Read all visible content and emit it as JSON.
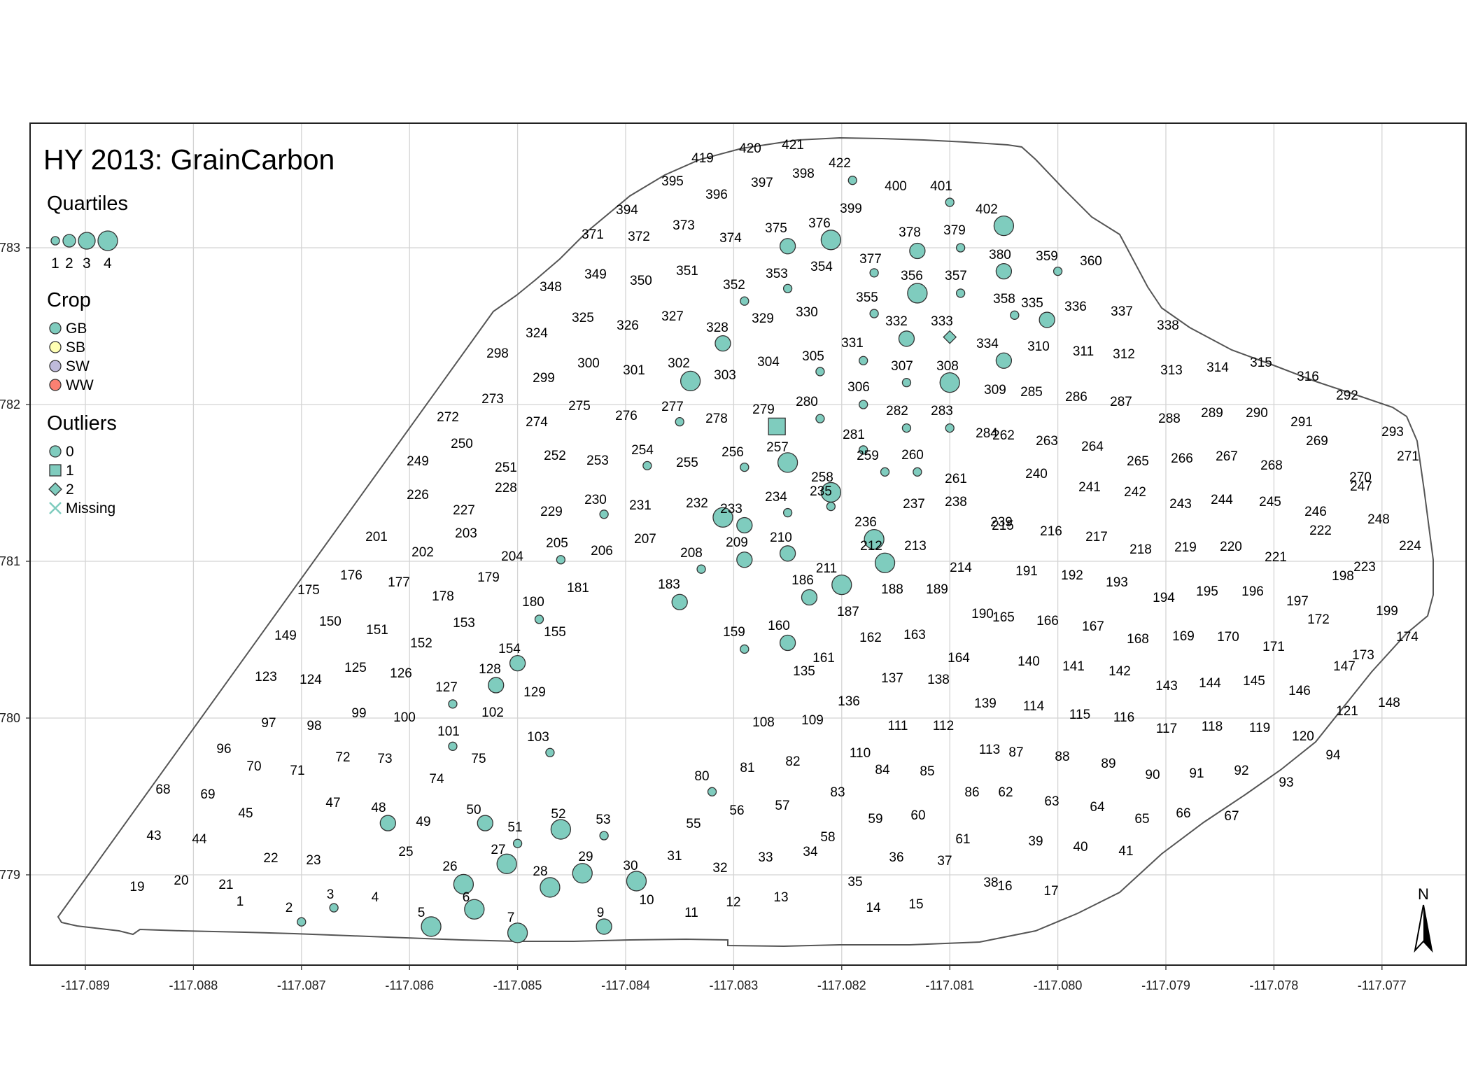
{
  "title": "HY 2013: GrainCarbon",
  "legend": {
    "quartiles_title": "Quartiles",
    "quartile_labels": [
      "1",
      "2",
      "3",
      "4"
    ],
    "crop_title": "Crop",
    "crops": [
      {
        "label": "GB",
        "color": "#7fccbe"
      },
      {
        "label": "SB",
        "color": "#ffffb3"
      },
      {
        "label": "SW",
        "color": "#bebada"
      },
      {
        "label": "WW",
        "color": "#fb8072"
      }
    ],
    "outliers_title": "Outliers",
    "outliers": [
      {
        "label": "0",
        "shape": "circle"
      },
      {
        "label": "1",
        "shape": "square"
      },
      {
        "label": "2",
        "shape": "diamond"
      },
      {
        "label": "Missing",
        "shape": "x"
      }
    ]
  },
  "axes": {
    "x_ticks": [
      "-117.089",
      "-117.088",
      "-117.087",
      "-117.086",
      "-117.085",
      "-117.084",
      "-117.083",
      "-117.082",
      "-117.081",
      "-117.080",
      "-117.079",
      "-117.078",
      "-117.077"
    ],
    "y_ticks": [
      "783",
      "782",
      "781",
      "780",
      "779"
    ]
  },
  "north_label": "N",
  "colors": {
    "point_fill": "#7fccbe",
    "point_stroke": "#333333",
    "boundary": "#555555",
    "grid": "#d4d4d4"
  },
  "chart_data": {
    "type": "scatter",
    "title": "HY 2013: GrainCarbon",
    "xlim": [
      -117.0893,
      -117.0763
    ],
    "x_ticks": [
      -117.089,
      -117.088,
      -117.087,
      -117.086,
      -117.085,
      -117.084,
      -117.083,
      -117.082,
      -117.081,
      -117.08,
      -117.079,
      -117.078,
      -117.077
    ],
    "y_ticks": [
      783,
      782,
      781,
      780,
      779
    ],
    "series": [
      {
        "name": "GB",
        "points": [
          {
            "id": "2",
            "x": -117.087,
            "y": 778.7,
            "q": 1,
            "o": 0
          },
          {
            "id": "3",
            "x": -117.0867,
            "y": 778.79,
            "q": 1,
            "o": 0
          },
          {
            "id": "5",
            "x": -117.0858,
            "y": 778.67,
            "q": 3,
            "o": 0
          },
          {
            "id": "6",
            "x": -117.0854,
            "y": 778.78,
            "q": 3,
            "o": 0
          },
          {
            "id": "7",
            "x": -117.085,
            "y": 778.63,
            "q": 3,
            "o": 0
          },
          {
            "id": "9",
            "x": -117.0842,
            "y": 778.67,
            "q": 2,
            "o": 0
          },
          {
            "id": "26",
            "x": -117.0855,
            "y": 778.94,
            "q": 3,
            "o": 0
          },
          {
            "id": "27",
            "x": -117.0851,
            "y": 779.07,
            "q": 3,
            "o": 0
          },
          {
            "id": "28",
            "x": -117.0847,
            "y": 778.92,
            "q": 3,
            "o": 0
          },
          {
            "id": "29",
            "x": -117.0844,
            "y": 779.01,
            "q": 3,
            "o": 0
          },
          {
            "id": "30",
            "x": -117.0839,
            "y": 778.96,
            "q": 3,
            "o": 0
          },
          {
            "id": "48",
            "x": -117.0862,
            "y": 779.33,
            "q": 2,
            "o": 0
          },
          {
            "id": "50",
            "x": -117.0853,
            "y": 779.33,
            "q": 2,
            "o": 0
          },
          {
            "id": "51",
            "x": -117.085,
            "y": 779.2,
            "q": 1,
            "o": 0
          },
          {
            "id": "52",
            "x": -117.0846,
            "y": 779.29,
            "q": 3,
            "o": 0
          },
          {
            "id": "53",
            "x": -117.0842,
            "y": 779.25,
            "q": 1,
            "o": 0
          },
          {
            "id": "80",
            "x": -117.0832,
            "y": 779.53,
            "q": 1,
            "o": 0
          },
          {
            "id": "101",
            "x": -117.0856,
            "y": 779.82,
            "q": 1,
            "o": 0
          },
          {
            "id": "103",
            "x": -117.0847,
            "y": 779.78,
            "q": 1,
            "o": 0
          },
          {
            "id": "127",
            "x": -117.0856,
            "y": 780.09,
            "q": 1,
            "o": 0
          },
          {
            "id": "128",
            "x": -117.0852,
            "y": 780.21,
            "q": 2,
            "o": 0
          },
          {
            "id": "154",
            "x": -117.085,
            "y": 780.35,
            "q": 2,
            "o": 0
          },
          {
            "id": "159",
            "x": -117.0829,
            "y": 780.44,
            "q": 1,
            "o": 0
          },
          {
            "id": "160",
            "x": -117.0825,
            "y": 780.48,
            "q": 2,
            "o": 0
          },
          {
            "id": "180",
            "x": -117.0848,
            "y": 780.63,
            "q": 1,
            "o": 0
          },
          {
            "id": "183",
            "x": -117.0835,
            "y": 780.74,
            "q": 2,
            "o": 0
          },
          {
            "id": "186",
            "x": -117.0823,
            "y": 780.77,
            "q": 2,
            "o": 0
          },
          {
            "id": "205",
            "x": -117.0846,
            "y": 781.01,
            "q": 1,
            "o": 0
          },
          {
            "id": "208",
            "x": -117.0833,
            "y": 780.95,
            "q": 1,
            "o": 0
          },
          {
            "id": "209",
            "x": -117.0829,
            "y": 781.01,
            "q": 2,
            "o": 0
          },
          {
            "id": "210",
            "x": -117.0825,
            "y": 781.05,
            "q": 2,
            "o": 0
          },
          {
            "id": "211",
            "x": -117.082,
            "y": 780.85,
            "q": 3,
            "o": 0
          },
          {
            "id": "212",
            "x": -117.0816,
            "y": 780.99,
            "q": 3,
            "o": 0
          },
          {
            "id": "230",
            "x": -117.0842,
            "y": 781.3,
            "q": 1,
            "o": 0
          },
          {
            "id": "232",
            "x": -117.0831,
            "y": 781.28,
            "q": 3,
            "o": 0
          },
          {
            "id": "233",
            "x": -117.0829,
            "y": 781.23,
            "q": 2,
            "o": 0
          },
          {
            "id": "234",
            "x": -117.0825,
            "y": 781.31,
            "q": 1,
            "o": 0
          },
          {
            "id": "235",
            "x": -117.0821,
            "y": 781.35,
            "q": 1,
            "o": 0
          },
          {
            "id": "236",
            "x": -117.0817,
            "y": 781.14,
            "q": 3,
            "o": 0
          },
          {
            "id": "254",
            "x": -117.0838,
            "y": 781.61,
            "q": 1,
            "o": 0
          },
          {
            "id": "256",
            "x": -117.0829,
            "y": 781.6,
            "q": 1,
            "o": 0
          },
          {
            "id": "257",
            "x": -117.0825,
            "y": 781.63,
            "q": 3,
            "o": 0
          },
          {
            "id": "258",
            "x": -117.0821,
            "y": 781.44,
            "q": 3,
            "o": 0
          },
          {
            "id": "259",
            "x": -117.0816,
            "y": 781.57,
            "q": 1,
            "o": 0
          },
          {
            "id": "260",
            "x": -117.0813,
            "y": 781.57,
            "q": 1,
            "o": 0
          },
          {
            "id": "277",
            "x": -117.0835,
            "y": 781.89,
            "q": 1,
            "o": 0
          },
          {
            "id": "279",
            "x": -117.0826,
            "y": 781.86,
            "q": 4,
            "o": 1
          },
          {
            "id": "280",
            "x": -117.0822,
            "y": 781.91,
            "q": 1,
            "o": 0
          },
          {
            "id": "281",
            "x": -117.0818,
            "y": 781.71,
            "q": 1,
            "o": 0
          },
          {
            "id": "282",
            "x": -117.0814,
            "y": 781.85,
            "q": 1,
            "o": 0
          },
          {
            "id": "283",
            "x": -117.081,
            "y": 781.85,
            "q": 1,
            "o": 0
          },
          {
            "id": "302",
            "x": -117.0834,
            "y": 782.15,
            "q": 3,
            "o": 0
          },
          {
            "id": "305",
            "x": -117.0822,
            "y": 782.21,
            "q": 1,
            "o": 0
          },
          {
            "id": "306",
            "x": -117.0818,
            "y": 782.0,
            "q": 1,
            "o": 0
          },
          {
            "id": "307",
            "x": -117.0814,
            "y": 782.14,
            "q": 1,
            "o": 0
          },
          {
            "id": "308",
            "x": -117.081,
            "y": 782.14,
            "q": 3,
            "o": 0
          },
          {
            "id": "328",
            "x": -117.0831,
            "y": 782.39,
            "q": 2,
            "o": 0
          },
          {
            "id": "331",
            "x": -117.0818,
            "y": 782.28,
            "q": 1,
            "o": 0
          },
          {
            "id": "332",
            "x": -117.0814,
            "y": 782.42,
            "q": 2,
            "o": 0
          },
          {
            "id": "333",
            "x": -117.081,
            "y": 782.43,
            "q": 2,
            "o": 2
          },
          {
            "id": "334",
            "x": -117.0805,
            "y": 782.28,
            "q": 2,
            "o": 0
          },
          {
            "id": "335",
            "x": -117.0801,
            "y": 782.54,
            "q": 2,
            "o": 0
          },
          {
            "id": "352",
            "x": -117.0829,
            "y": 782.66,
            "q": 1,
            "o": 0
          },
          {
            "id": "353",
            "x": -117.0825,
            "y": 782.74,
            "q": 1,
            "o": 0
          },
          {
            "id": "355",
            "x": -117.0817,
            "y": 782.58,
            "q": 1,
            "o": 0
          },
          {
            "id": "356",
            "x": -117.0813,
            "y": 782.71,
            "q": 3,
            "o": 0
          },
          {
            "id": "357",
            "x": -117.0809,
            "y": 782.71,
            "q": 1,
            "o": 0
          },
          {
            "id": "358",
            "x": -117.0804,
            "y": 782.57,
            "q": 1,
            "o": 0
          },
          {
            "id": "359",
            "x": -117.08,
            "y": 782.85,
            "q": 1,
            "o": 0
          },
          {
            "id": "375",
            "x": -117.0825,
            "y": 783.01,
            "q": 2,
            "o": 0
          },
          {
            "id": "376",
            "x": -117.0821,
            "y": 783.05,
            "q": 3,
            "o": 0
          },
          {
            "id": "377",
            "x": -117.0817,
            "y": 782.84,
            "q": 1,
            "o": 0
          },
          {
            "id": "378",
            "x": -117.0813,
            "y": 782.98,
            "q": 2,
            "o": 0
          },
          {
            "id": "379",
            "x": -117.0809,
            "y": 783.0,
            "q": 1,
            "o": 0
          },
          {
            "id": "380",
            "x": -117.0805,
            "y": 782.85,
            "q": 2,
            "o": 0
          },
          {
            "id": "401",
            "x": -117.081,
            "y": 783.29,
            "q": 1,
            "o": 0
          },
          {
            "id": "402",
            "x": -117.0805,
            "y": 783.14,
            "q": 3,
            "o": 0
          },
          {
            "id": "422",
            "x": -117.0819,
            "y": 783.43,
            "q": 1,
            "o": 0
          }
        ]
      }
    ]
  },
  "label_list": [
    "1",
    "2",
    "3",
    "4",
    "5",
    "6",
    "7",
    "9",
    "10",
    "11",
    "12",
    "13",
    "14",
    "15",
    "16",
    "17",
    "19",
    "20",
    "21",
    "22",
    "23",
    "25",
    "26",
    "27",
    "28",
    "29",
    "30",
    "31",
    "32",
    "33",
    "34",
    "35",
    "36",
    "37",
    "38",
    "39",
    "40",
    "41",
    "43",
    "44",
    "45",
    "47",
    "48",
    "49",
    "50",
    "51",
    "52",
    "53",
    "55",
    "56",
    "57",
    "58",
    "59",
    "60",
    "61",
    "62",
    "63",
    "64",
    "65",
    "66",
    "67",
    "68",
    "69",
    "70",
    "71",
    "72",
    "73",
    "74",
    "75",
    "80",
    "81",
    "82",
    "83",
    "84",
    "85",
    "86",
    "87",
    "88",
    "89",
    "90",
    "91",
    "92",
    "93",
    "94",
    "96",
    "97",
    "98",
    "99",
    "100",
    "101",
    "102",
    "103",
    "108",
    "109",
    "110",
    "111",
    "112",
    "113",
    "114",
    "115",
    "116",
    "117",
    "118",
    "119",
    "120",
    "121",
    "123",
    "124",
    "125",
    "126",
    "127",
    "128",
    "129",
    "135",
    "136",
    "137",
    "138",
    "139",
    "140",
    "141",
    "142",
    "143",
    "144",
    "145",
    "146",
    "147",
    "148",
    "149",
    "150",
    "151",
    "152",
    "153",
    "154",
    "155",
    "159",
    "160",
    "161",
    "162",
    "163",
    "164",
    "165",
    "166",
    "167",
    "168",
    "169",
    "170",
    "171",
    "172",
    "173",
    "174",
    "175",
    "176",
    "177",
    "178",
    "179",
    "180",
    "181",
    "183",
    "186",
    "187",
    "188",
    "189",
    "190",
    "191",
    "192",
    "193",
    "194",
    "195",
    "196",
    "197",
    "198",
    "199",
    "201",
    "202",
    "203",
    "204",
    "205",
    "206",
    "207",
    "208",
    "209",
    "210",
    "211",
    "212",
    "213",
    "214",
    "215",
    "216",
    "217",
    "218",
    "219",
    "220",
    "221",
    "222",
    "223",
    "224",
    "226",
    "227",
    "228",
    "229",
    "230",
    "231",
    "232",
    "233",
    "234",
    "235",
    "236",
    "237",
    "238",
    "239",
    "240",
    "241",
    "242",
    "243",
    "244",
    "245",
    "246",
    "247",
    "248",
    "249",
    "250",
    "251",
    "252",
    "253",
    "254",
    "255",
    "256",
    "257",
    "258",
    "259",
    "260",
    "261",
    "262",
    "263",
    "264",
    "265",
    "266",
    "267",
    "268",
    "269",
    "270",
    "271",
    "272",
    "273",
    "274",
    "275",
    "276",
    "277",
    "278",
    "279",
    "280",
    "281",
    "282",
    "283",
    "284",
    "285",
    "286",
    "287",
    "288",
    "289",
    "290",
    "291",
    "292",
    "293",
    "298",
    "299",
    "300",
    "301",
    "302",
    "303",
    "304",
    "305",
    "306",
    "307",
    "308",
    "309",
    "310",
    "311",
    "312",
    "313",
    "314",
    "315",
    "316",
    "324",
    "325",
    "326",
    "327",
    "328",
    "329",
    "330",
    "331",
    "332",
    "333",
    "334",
    "335",
    "336",
    "337",
    "338",
    "348",
    "349",
    "350",
    "351",
    "352",
    "353",
    "354",
    "355",
    "356",
    "357",
    "358",
    "359",
    "360",
    "371",
    "372",
    "373",
    "374",
    "375",
    "376",
    "377",
    "378",
    "379",
    "380",
    "394",
    "395",
    "396",
    "397",
    "398",
    "399",
    "400",
    "401",
    "402",
    "419",
    "420",
    "421",
    "422"
  ]
}
